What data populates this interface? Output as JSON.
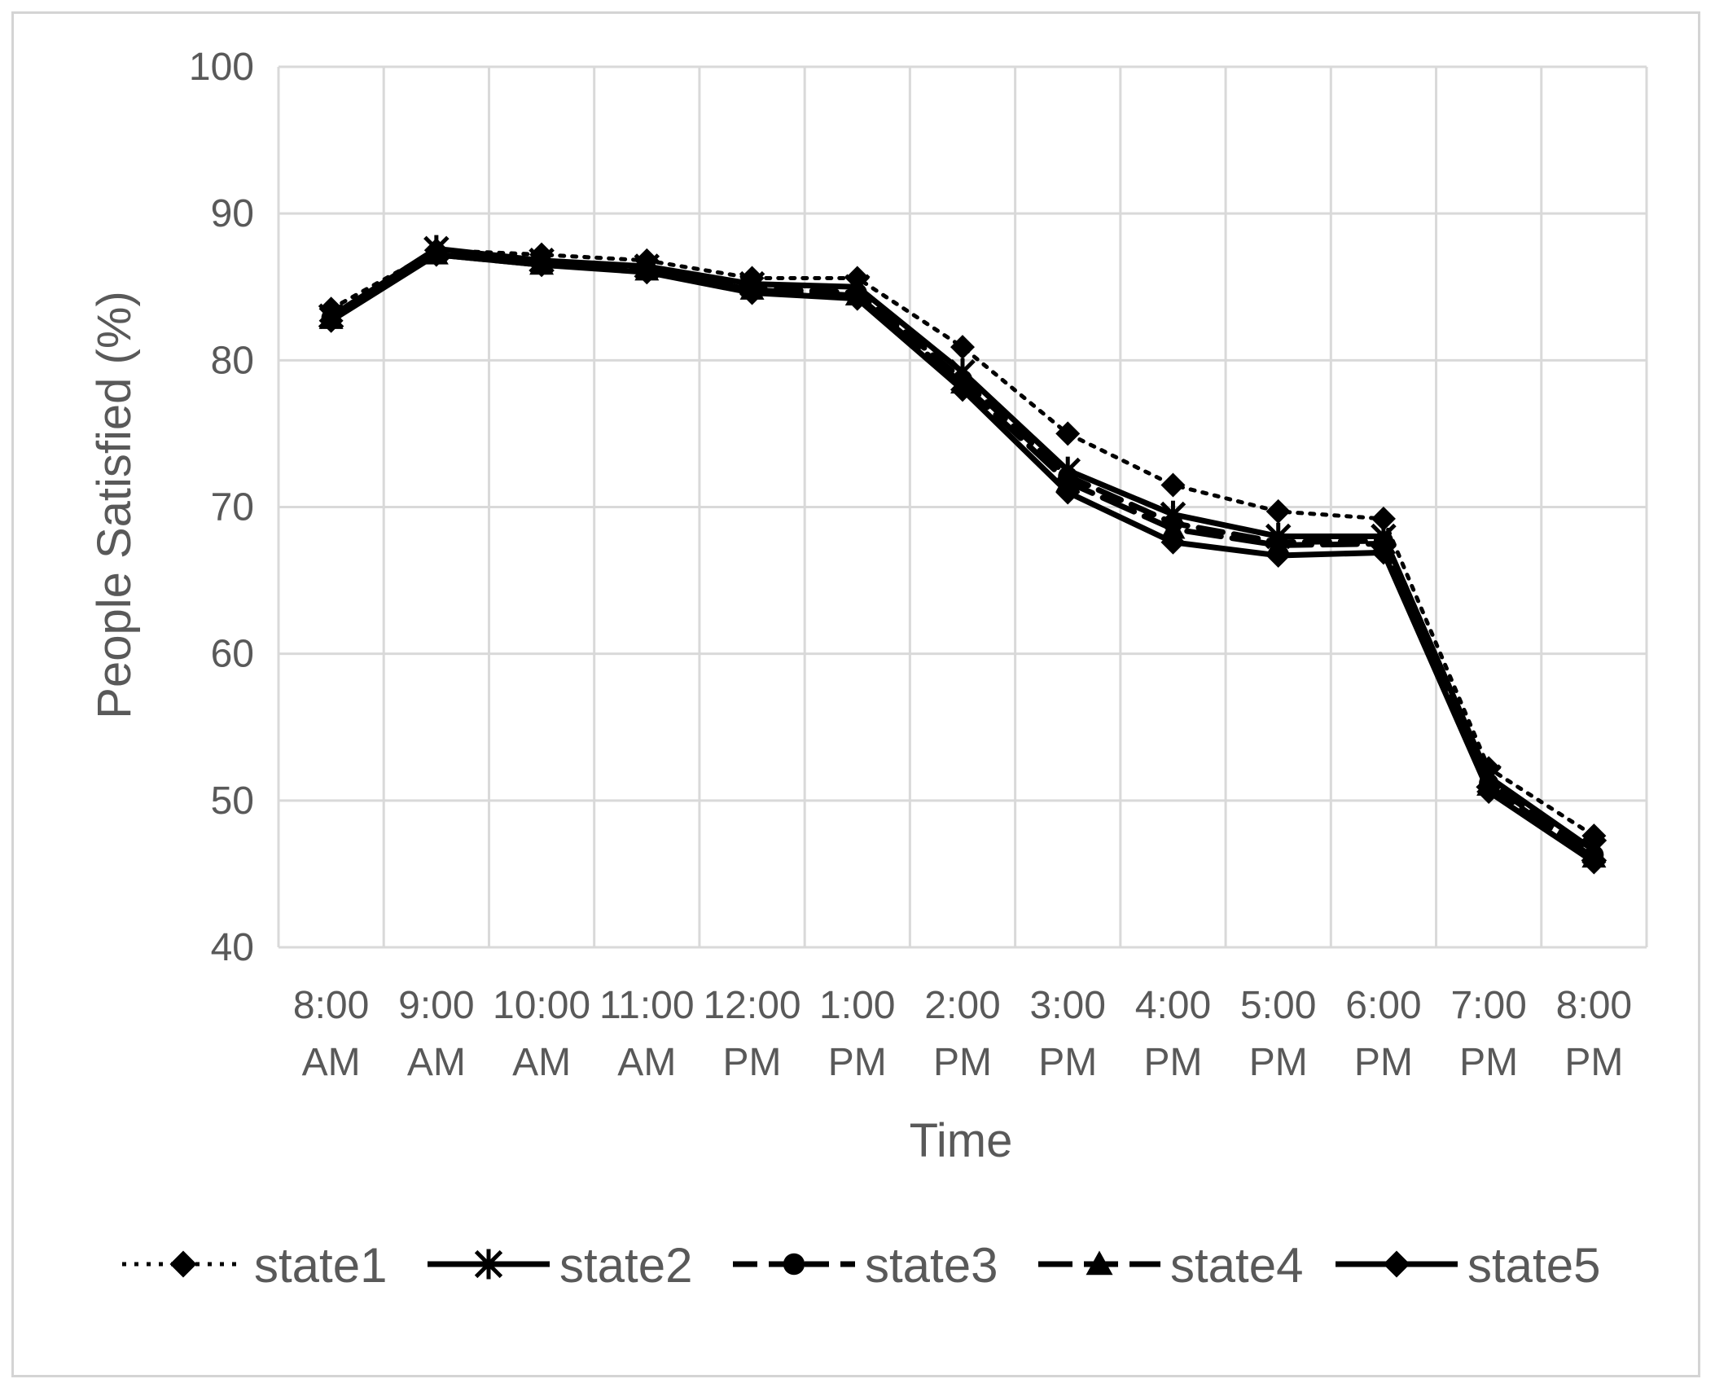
{
  "chart_data": {
    "type": "line",
    "title": "",
    "xlabel": "Time",
    "ylabel": "People Satisfied (%)",
    "ylim": [
      40,
      100
    ],
    "yticks": [
      40,
      50,
      60,
      70,
      80,
      90,
      100
    ],
    "grid": true,
    "legend_position": "bottom",
    "categories": [
      [
        "8:00",
        "AM"
      ],
      [
        "9:00",
        "AM"
      ],
      [
        "10:00",
        "AM"
      ],
      [
        "11:00",
        "AM"
      ],
      [
        "12:00",
        "PM"
      ],
      [
        "1:00",
        "PM"
      ],
      [
        "2:00",
        "PM"
      ],
      [
        "3:00",
        "PM"
      ],
      [
        "4:00",
        "PM"
      ],
      [
        "5:00",
        "PM"
      ],
      [
        "6:00",
        "PM"
      ],
      [
        "7:00",
        "PM"
      ],
      [
        "8:00",
        "PM"
      ]
    ],
    "series": [
      {
        "name": "state1",
        "line": "dotted",
        "marker": "diamond",
        "color": "#000000",
        "values": [
          83.5,
          87.5,
          87.2,
          86.8,
          85.6,
          85.6,
          80.9,
          75.0,
          71.5,
          69.7,
          69.2,
          52.2,
          47.6
        ]
      },
      {
        "name": "state2",
        "line": "solid",
        "marker": "asterisk",
        "color": "#000000",
        "values": [
          83.0,
          87.6,
          86.8,
          86.4,
          85.2,
          85.0,
          79.2,
          72.5,
          69.5,
          68.0,
          68.0,
          51.6,
          46.6
        ]
      },
      {
        "name": "state3",
        "line": "dashed",
        "marker": "circle",
        "color": "#000000",
        "values": [
          82.9,
          87.3,
          86.6,
          86.2,
          84.9,
          84.6,
          78.7,
          72.1,
          68.9,
          67.6,
          67.7,
          51.2,
          46.3
        ]
      },
      {
        "name": "state4",
        "line": "longdash",
        "marker": "triangle",
        "color": "#000000",
        "values": [
          82.8,
          87.2,
          86.5,
          86.1,
          84.8,
          84.4,
          78.4,
          71.7,
          68.5,
          67.4,
          67.5,
          51.0,
          46.1
        ]
      },
      {
        "name": "state5",
        "line": "solid",
        "marker": "diamond",
        "color": "#000000",
        "values": [
          82.7,
          87.2,
          86.5,
          86.0,
          84.6,
          84.2,
          78.0,
          71.0,
          67.6,
          66.7,
          66.9,
          50.6,
          45.8
        ]
      }
    ]
  }
}
